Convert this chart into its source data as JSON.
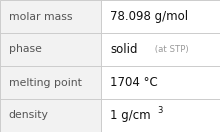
{
  "rows": [
    {
      "label": "molar mass",
      "value": "78.098 g/mol",
      "value_suffix": null,
      "value_sup": null
    },
    {
      "label": "phase",
      "value": "solid",
      "value_suffix": " (at STP)",
      "value_sup": null
    },
    {
      "label": "melting point",
      "value": "1704 °C",
      "value_suffix": null,
      "value_sup": null
    },
    {
      "label": "density",
      "value": "1 g/cm",
      "value_suffix": null,
      "value_sup": "3"
    }
  ],
  "col_split": 0.46,
  "bg_color": "#ffffff",
  "left_col_bg": "#f2f2f2",
  "border_color": "#cccccc",
  "label_color": "#555555",
  "value_color": "#111111",
  "suffix_color": "#999999",
  "label_fontsize": 7.8,
  "value_fontsize": 8.5,
  "suffix_fontsize": 6.2,
  "sup_fontsize": 6.0
}
